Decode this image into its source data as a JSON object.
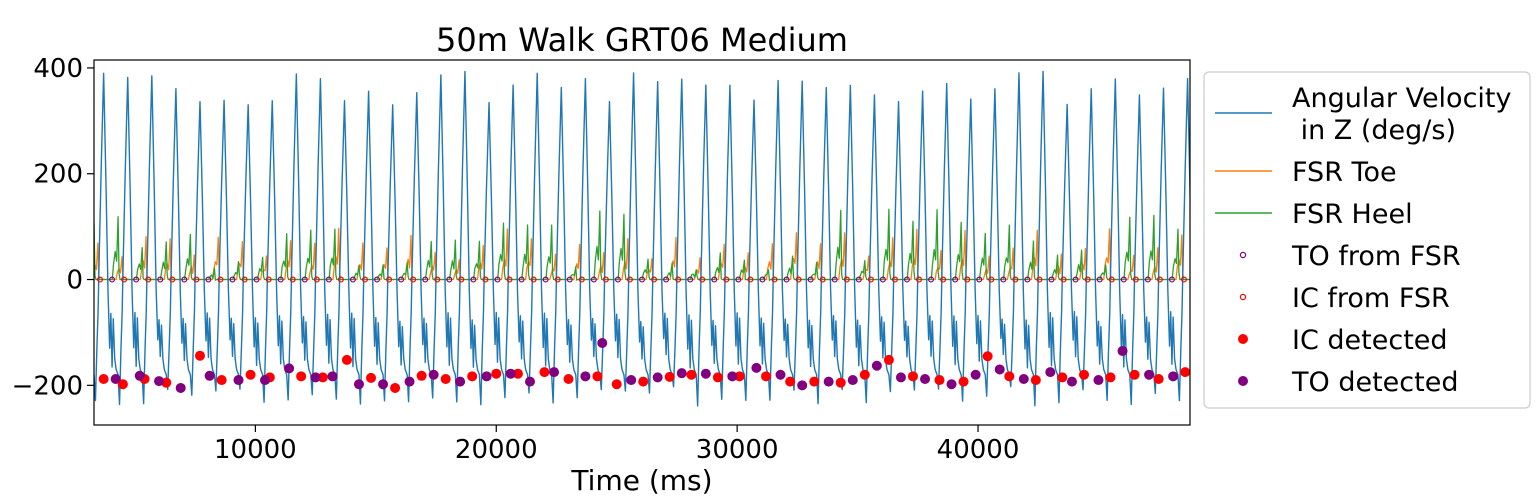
{
  "chart_data": {
    "type": "line",
    "title": "50m Walk GRT06 Medium",
    "xlabel": "Time (ms)",
    "ylabel": "",
    "xlim": [
      3300,
      48800
    ],
    "ylim": [
      -275,
      415
    ],
    "xticks": [
      10000,
      20000,
      30000,
      40000
    ],
    "yticks": [
      -200,
      0,
      200,
      400
    ],
    "xtick_labels": [
      "10000",
      "20000",
      "30000",
      "40000"
    ],
    "ytick_labels": [
      "−200",
      "0",
      "200",
      "400"
    ],
    "grid": false,
    "legend_position": "outside-right",
    "gait_cycle_ms": 1000,
    "first_cycle_start_ms": 3500,
    "series": [
      {
        "name": "Angular Velocity\n in Z (deg/s)",
        "kind": "line",
        "color": "#1f77b4",
        "peak_range": [
          330,
          395
        ],
        "trough_range": [
          -240,
          -200
        ]
      },
      {
        "name": "FSR Toe",
        "kind": "line",
        "color": "#ff7f0e",
        "peak_range": [
          40,
          100
        ]
      },
      {
        "name": "FSR Heel",
        "kind": "line",
        "color": "#2ca02c",
        "peak_range": [
          20,
          135
        ]
      },
      {
        "name": "TO from FSR",
        "kind": "scatter-open",
        "color": "#800080",
        "y": 0
      },
      {
        "name": "IC from FSR",
        "kind": "scatter-open",
        "color": "#ff0000",
        "y": 0
      },
      {
        "name": "IC detected",
        "kind": "scatter",
        "color": "#ff0000"
      },
      {
        "name": "TO detected",
        "kind": "scatter",
        "color": "#800080"
      }
    ],
    "ic_detected": [
      [
        3700,
        -188
      ],
      [
        4500,
        -198
      ],
      [
        5400,
        -188
      ],
      [
        6300,
        -195
      ],
      [
        7700,
        -144
      ],
      [
        8600,
        -190
      ],
      [
        9800,
        -180
      ],
      [
        10600,
        -185
      ],
      [
        11900,
        -183
      ],
      [
        12800,
        -185
      ],
      [
        13800,
        -152
      ],
      [
        14800,
        -186
      ],
      [
        15800,
        -205
      ],
      [
        16900,
        -182
      ],
      [
        17900,
        -188
      ],
      [
        19000,
        -183
      ],
      [
        20000,
        -178
      ],
      [
        20900,
        -178
      ],
      [
        22000,
        -175
      ],
      [
        23000,
        -188
      ],
      [
        24200,
        -183
      ],
      [
        25000,
        -198
      ],
      [
        26100,
        -193
      ],
      [
        27200,
        -184
      ],
      [
        28100,
        -180
      ],
      [
        29200,
        -185
      ],
      [
        30100,
        -183
      ],
      [
        31200,
        -183
      ],
      [
        32200,
        -193
      ],
      [
        33200,
        -193
      ],
      [
        34300,
        -195
      ],
      [
        35300,
        -180
      ],
      [
        36300,
        -152
      ],
      [
        37300,
        -183
      ],
      [
        38400,
        -190
      ],
      [
        39400,
        -193
      ],
      [
        40400,
        -145
      ],
      [
        41300,
        -183
      ],
      [
        42400,
        -190
      ],
      [
        43500,
        -185
      ],
      [
        44400,
        -180
      ],
      [
        45500,
        -185
      ],
      [
        46500,
        -180
      ],
      [
        47500,
        -188
      ],
      [
        48600,
        -175
      ]
    ],
    "to_detected": [
      [
        4200,
        -188
      ],
      [
        5200,
        -182
      ],
      [
        6000,
        -192
      ],
      [
        6900,
        -205
      ],
      [
        8100,
        -182
      ],
      [
        9300,
        -190
      ],
      [
        10400,
        -190
      ],
      [
        11400,
        -168
      ],
      [
        12500,
        -185
      ],
      [
        13200,
        -183
      ],
      [
        14300,
        -198
      ],
      [
        15300,
        -198
      ],
      [
        16400,
        -193
      ],
      [
        17400,
        -180
      ],
      [
        18500,
        -193
      ],
      [
        19600,
        -183
      ],
      [
        20600,
        -178
      ],
      [
        21400,
        -193
      ],
      [
        22400,
        -175
      ],
      [
        23700,
        -183
      ],
      [
        24400,
        -120
      ],
      [
        25600,
        -190
      ],
      [
        26700,
        -185
      ],
      [
        27700,
        -177
      ],
      [
        28700,
        -178
      ],
      [
        29800,
        -183
      ],
      [
        30800,
        -167
      ],
      [
        31800,
        -180
      ],
      [
        32700,
        -200
      ],
      [
        33800,
        -193
      ],
      [
        34800,
        -190
      ],
      [
        35800,
        -163
      ],
      [
        36800,
        -185
      ],
      [
        37800,
        -188
      ],
      [
        38900,
        -198
      ],
      [
        39900,
        -180
      ],
      [
        40900,
        -170
      ],
      [
        41900,
        -188
      ],
      [
        43000,
        -175
      ],
      [
        43900,
        -193
      ],
      [
        45000,
        -190
      ],
      [
        46000,
        -135
      ],
      [
        47100,
        -180
      ],
      [
        48100,
        -183
      ]
    ]
  }
}
